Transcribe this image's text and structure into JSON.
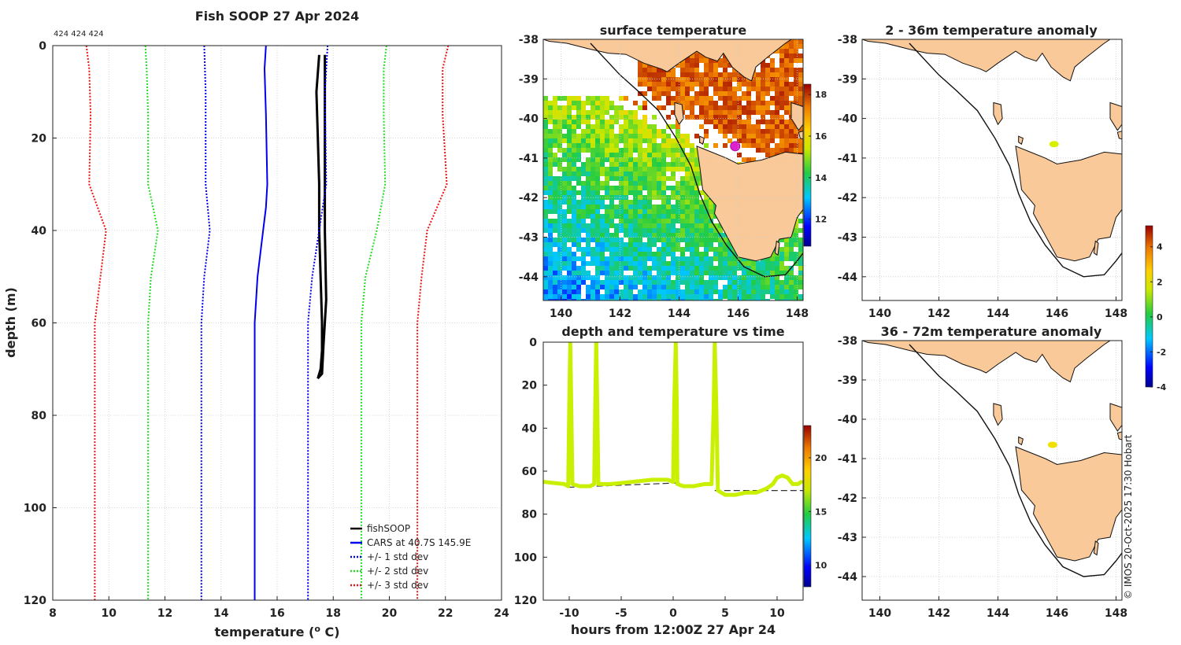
{
  "colors": {
    "land": "#f9c99a",
    "coast": "#111111",
    "black": "#000000",
    "blue": "#0000ee",
    "green": "#22dd22",
    "red": "#ee1111",
    "probe": "#c8f000",
    "marker": "#dd22cc"
  },
  "chart_data": [
    {
      "id": "profile",
      "type": "line",
      "title": "Fish SOOP 27 Apr 2024",
      "counts_label": "424 424 424",
      "xlabel": "temperature (",
      "xlabel_sup": "o",
      "xlabel_end": " C)",
      "ylabel": "depth (m)",
      "xlim": [
        8,
        24
      ],
      "ylim": [
        0,
        120
      ],
      "y_inverted": true,
      "xticks": [
        8,
        10,
        12,
        14,
        16,
        18,
        20,
        22,
        24
      ],
      "yticks": [
        0,
        20,
        40,
        60,
        80,
        100,
        120
      ],
      "grid": true,
      "legend_position": "bottom-right",
      "series": [
        {
          "name": "fishSOOP",
          "style": "solid",
          "color": "#000000",
          "points": [
            [
              17.5,
              2
            ],
            [
              17.4,
              10
            ],
            [
              17.45,
              20
            ],
            [
              17.5,
              30
            ],
            [
              17.5,
              40
            ],
            [
              17.55,
              50
            ],
            [
              17.6,
              60
            ],
            [
              17.6,
              66
            ],
            [
              17.55,
              70
            ],
            [
              17.45,
              72
            ],
            [
              17.6,
              71
            ],
            [
              17.65,
              65
            ],
            [
              17.75,
              55
            ],
            [
              17.7,
              40
            ],
            [
              17.7,
              20
            ],
            [
              17.7,
              2
            ]
          ]
        },
        {
          "name": "CARS at 40.7S 145.9E",
          "style": "solid",
          "color": "#0000ee",
          "points": [
            [
              15.6,
              0
            ],
            [
              15.55,
              5
            ],
            [
              15.6,
              15
            ],
            [
              15.65,
              30
            ],
            [
              15.6,
              35
            ],
            [
              15.5,
              40
            ],
            [
              15.3,
              50
            ],
            [
              15.2,
              60
            ],
            [
              15.2,
              120
            ]
          ]
        },
        {
          "name": "+/- 1 std dev",
          "style": "dotted",
          "color": "#0000ee",
          "points": [
            [
              13.4,
              0
            ],
            [
              13.45,
              10
            ],
            [
              13.45,
              30
            ],
            [
              13.6,
              40
            ],
            [
              13.4,
              50
            ],
            [
              13.3,
              60
            ],
            [
              13.3,
              120
            ]
          ]
        },
        {
          "name": "",
          "style": "dotted",
          "color": "#0000ee",
          "points": [
            [
              17.8,
              0
            ],
            [
              17.7,
              10
            ],
            [
              17.75,
              30
            ],
            [
              17.5,
              40
            ],
            [
              17.25,
              50
            ],
            [
              17.1,
              60
            ],
            [
              17.1,
              120
            ]
          ]
        },
        {
          "name": "+/- 2 std dev",
          "style": "dotted",
          "color": "#22dd22",
          "points": [
            [
              11.3,
              0
            ],
            [
              11.35,
              5
            ],
            [
              11.4,
              15
            ],
            [
              11.4,
              30
            ],
            [
              11.75,
              40
            ],
            [
              11.5,
              50
            ],
            [
              11.4,
              60
            ],
            [
              11.4,
              120
            ]
          ]
        },
        {
          "name": "",
          "style": "dotted",
          "color": "#22dd22",
          "points": [
            [
              19.9,
              0
            ],
            [
              19.8,
              5
            ],
            [
              19.8,
              15
            ],
            [
              19.85,
              30
            ],
            [
              19.55,
              40
            ],
            [
              19.15,
              50
            ],
            [
              19.0,
              60
            ],
            [
              19.0,
              120
            ]
          ]
        },
        {
          "name": "+/- 3 std dev",
          "style": "dotted",
          "color": "#ee1111",
          "points": [
            [
              9.2,
              0
            ],
            [
              9.3,
              5
            ],
            [
              9.35,
              15
            ],
            [
              9.3,
              30
            ],
            [
              9.9,
              40
            ],
            [
              9.7,
              50
            ],
            [
              9.5,
              60
            ],
            [
              9.5,
              120
            ]
          ]
        },
        {
          "name": "",
          "style": "dotted",
          "color": "#ee1111",
          "points": [
            [
              22.1,
              0
            ],
            [
              21.9,
              5
            ],
            [
              21.9,
              15
            ],
            [
              22.05,
              30
            ],
            [
              21.35,
              40
            ],
            [
              21.15,
              50
            ],
            [
              21.0,
              60
            ],
            [
              21.0,
              120
            ]
          ]
        }
      ]
    },
    {
      "id": "surface",
      "type": "heatmap",
      "title": "surface temperature",
      "xlim": [
        139.4,
        148.2
      ],
      "ylim": [
        -44.6,
        -38
      ],
      "xticks": [
        140,
        142,
        144,
        146,
        148
      ],
      "yticks": [
        -38,
        -39,
        -40,
        -41,
        -42,
        -43,
        -44
      ],
      "colorbar": {
        "min": 10.7,
        "max": 18.5,
        "ticks": [
          12,
          14,
          16,
          18
        ]
      },
      "marker": {
        "lon": 145.9,
        "lat": -40.7
      }
    },
    {
      "id": "timeseries",
      "type": "line",
      "title": "depth and temperature vs time",
      "xlabel": "hours from 12:00Z 27 Apr 24",
      "xlim": [
        -12.5,
        12.5
      ],
      "ylim": [
        0,
        120
      ],
      "y_inverted": true,
      "xticks": [
        -10,
        -5,
        0,
        5,
        10
      ],
      "xtick_labels": [
        "-10",
        "-5",
        "0",
        "5",
        "10"
      ],
      "yticks": [
        0,
        20,
        40,
        60,
        80,
        100,
        120
      ],
      "colorbar": {
        "min": 8,
        "max": 23,
        "ticks": [
          10,
          15,
          20
        ]
      },
      "bottom_lines": [
        {
          "x": [
            -10.1,
            0.3
          ],
          "y": [
            67.5,
            65.5
          ]
        },
        {
          "x": [
            4.0,
            12.5
          ],
          "y": [
            69,
            69
          ]
        }
      ],
      "trace": [
        [
          -12.4,
          65
        ],
        [
          -11.5,
          65.5
        ],
        [
          -10.5,
          66
        ],
        [
          -10.1,
          67
        ],
        [
          -10.0,
          30
        ],
        [
          -9.9,
          0
        ],
        [
          -9.8,
          30
        ],
        [
          -9.7,
          66
        ],
        [
          -9,
          67
        ],
        [
          -8,
          67
        ],
        [
          -7.6,
          66
        ],
        [
          -7.5,
          30
        ],
        [
          -7.4,
          0
        ],
        [
          -7.3,
          30
        ],
        [
          -7.2,
          66
        ],
        [
          -6,
          66
        ],
        [
          -4,
          65
        ],
        [
          -2,
          64
        ],
        [
          -0.5,
          64
        ],
        [
          0,
          65
        ],
        [
          0.1,
          30
        ],
        [
          0.25,
          0
        ],
        [
          0.35,
          30
        ],
        [
          0.4,
          66
        ],
        [
          1,
          67
        ],
        [
          2,
          67
        ],
        [
          3,
          66
        ],
        [
          3.7,
          66
        ],
        [
          3.9,
          30
        ],
        [
          4.0,
          0
        ],
        [
          4.15,
          30
        ],
        [
          4.3,
          69
        ],
        [
          5,
          71
        ],
        [
          6,
          71
        ],
        [
          7,
          70
        ],
        [
          8,
          70
        ],
        [
          9,
          68
        ],
        [
          9.6,
          66
        ],
        [
          10,
          63
        ],
        [
          10.5,
          62
        ],
        [
          11,
          63
        ],
        [
          11.5,
          66
        ],
        [
          12,
          66
        ],
        [
          12.3,
          65
        ]
      ]
    },
    {
      "id": "anom_top",
      "type": "heatmap",
      "title": "2 - 36m temperature anomaly",
      "xlim": [
        139.4,
        148.2
      ],
      "ylim": [
        -44.6,
        -38
      ],
      "xticks": [
        140,
        142,
        144,
        146,
        148
      ],
      "yticks": [
        -38,
        -39,
        -40,
        -41,
        -42,
        -43,
        -44
      ],
      "marker": {
        "lon": 145.9,
        "lat": -40.65,
        "color": "#d8f000"
      },
      "colorbar": {
        "min": -4,
        "max": 5.2,
        "ticks": [
          4,
          2,
          0,
          -2,
          -4
        ]
      }
    },
    {
      "id": "anom_bottom",
      "type": "heatmap",
      "title": "36 - 72m temperature anomaly",
      "xlim": [
        139.4,
        148.2
      ],
      "ylim": [
        -44.6,
        -38
      ],
      "xticks": [
        140,
        142,
        144,
        146,
        148
      ],
      "yticks": [
        -38,
        -39,
        -40,
        -41,
        -42,
        -43,
        -44
      ],
      "marker": {
        "lon": 145.85,
        "lat": -40.65,
        "color": "#f0e000"
      }
    }
  ],
  "credit": "© IMOS 20-Oct-2025 17:30 Hobart"
}
